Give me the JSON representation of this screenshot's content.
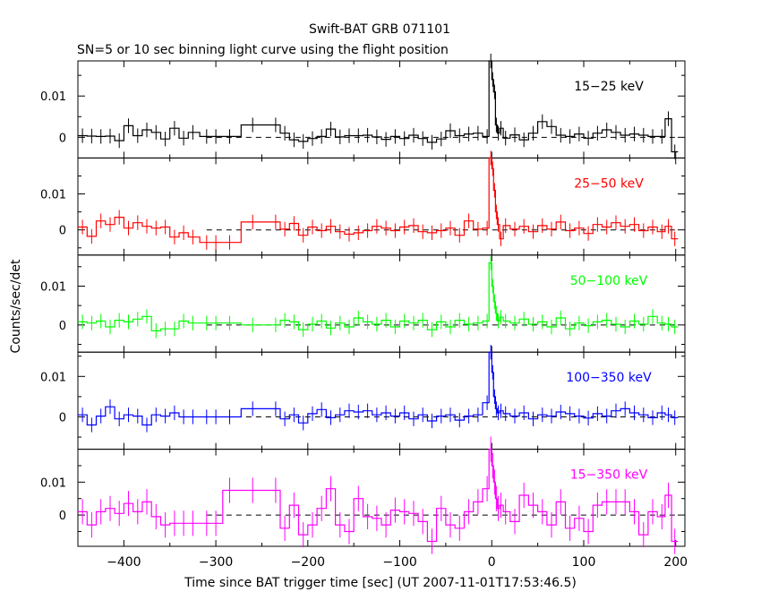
{
  "chart_data": {
    "type": "line",
    "title": "Swift-BAT GRB 071101",
    "subtitle": "SN=5 or 10 sec binning light curve using the flight position",
    "xlabel": "Time since BAT trigger time [sec] (UT 2007-11-01T17:53:46.5)",
    "ylabel": "Counts/sec/det",
    "xlim": [
      -450,
      210
    ],
    "x_ticks": [
      -400,
      -300,
      -200,
      -100,
      0,
      100,
      200
    ],
    "x_tick_labels": [
      "−400",
      "−300",
      "−200",
      "−100",
      "0",
      "100",
      "200"
    ],
    "y_ticks": [
      0,
      0.01
    ],
    "y_tick_labels": [
      "0",
      "0.01"
    ],
    "baseline": 0,
    "series": [
      {
        "name": "15−25 keV",
        "color": "#000000",
        "ylim": [
          -0.005,
          0.0185
        ],
        "x": [
          -445,
          -435,
          -425,
          -415,
          -405,
          -395,
          -385,
          -375,
          -365,
          -355,
          -345,
          -335,
          -325,
          -310,
          -300,
          -285,
          -260,
          -235,
          -225,
          -215,
          -205,
          -195,
          -185,
          -175,
          -165,
          -155,
          -145,
          -135,
          -125,
          -115,
          -105,
          -95,
          -85,
          -75,
          -65,
          -55,
          -45,
          -35,
          -25,
          -15,
          -5,
          -1,
          1,
          3,
          5,
          7,
          10,
          15,
          25,
          35,
          45,
          55,
          65,
          75,
          85,
          95,
          105,
          115,
          125,
          135,
          145,
          155,
          165,
          175,
          185,
          192,
          199
        ],
        "y": [
          0.0004,
          0.0003,
          0.0002,
          0.0003,
          -0.0008,
          0.0028,
          0.0004,
          0.0018,
          0.0012,
          -0.0004,
          0.0022,
          -0.0002,
          0.0012,
          0.0002,
          0.0002,
          0.0002,
          0.003,
          0.003,
          0.001,
          -0.0006,
          -0.001,
          -0.0003,
          0.0002,
          0.002,
          0.0001,
          0.0004,
          0.0004,
          0.0005,
          0.0001,
          -0.0005,
          0.0002,
          -0.0003,
          0.0005,
          -0.0003,
          -0.0012,
          -0.0004,
          0.0016,
          0.0004,
          0.0008,
          0.001,
          0.0002,
          0.0185,
          0.014,
          0.011,
          0.003,
          0.001,
          0.0022,
          -0.0002,
          0.0006,
          -0.0006,
          0.001,
          0.0038,
          0.0026,
          0.0005,
          0.0002,
          0.0008,
          -0.0002,
          0.001,
          0.0018,
          0.0012,
          0.0005,
          0.0008,
          0.0005,
          0.0002,
          0.0002,
          0.0045,
          -0.0035
        ]
      },
      {
        "name": "25−50 keV",
        "color": "#ff0000",
        "ylim": [
          -0.007,
          0.02
        ],
        "x": [
          -445,
          -435,
          -425,
          -415,
          -405,
          -395,
          -385,
          -375,
          -365,
          -355,
          -345,
          -335,
          -325,
          -310,
          -300,
          -285,
          -260,
          -235,
          -225,
          -215,
          -205,
          -195,
          -185,
          -175,
          -165,
          -155,
          -145,
          -135,
          -125,
          -115,
          -105,
          -95,
          -85,
          -75,
          -65,
          -55,
          -45,
          -35,
          -25,
          -15,
          -5,
          -1,
          1,
          3,
          5,
          7,
          10,
          15,
          25,
          35,
          45,
          55,
          65,
          75,
          85,
          95,
          105,
          115,
          125,
          135,
          145,
          155,
          165,
          175,
          185,
          192,
          199
        ],
        "y": [
          0.0008,
          -0.0018,
          0.0025,
          0.0015,
          0.0035,
          0.0005,
          0.002,
          0.001,
          0.0005,
          0.0008,
          -0.002,
          -0.0008,
          -0.002,
          -0.0035,
          -0.0035,
          -0.0035,
          0.0022,
          0.0022,
          0.0002,
          0.0018,
          -0.0015,
          0.0008,
          -0.0002,
          0.001,
          -0.0005,
          -0.0012,
          -0.0008,
          -0.0002,
          0.001,
          0.0005,
          -0.0002,
          0.0008,
          0.0012,
          -0.0005,
          -0.0008,
          -0.0002,
          0.0005,
          -0.0015,
          0.0025,
          0.0002,
          0.0005,
          0.02,
          0.017,
          0.011,
          0.005,
          0.0015,
          -0.0025,
          0.0012,
          0.0002,
          0.001,
          -0.0005,
          0.0012,
          0.0002,
          0.0022,
          -0.0002,
          0.0005,
          -0.001,
          0.0015,
          0.0008,
          0.002,
          0.001,
          0.0015,
          -0.0002,
          0.0008,
          -0.0005,
          0.001,
          -0.0025
        ]
      },
      {
        "name": "50−100 keV",
        "color": "#00ff00",
        "ylim": [
          -0.007,
          0.018
        ],
        "x": [
          -445,
          -435,
          -425,
          -415,
          -405,
          -395,
          -385,
          -375,
          -365,
          -355,
          -345,
          -335,
          -325,
          -310,
          -300,
          -285,
          -260,
          -235,
          -225,
          -215,
          -205,
          -195,
          -185,
          -175,
          -165,
          -155,
          -145,
          -135,
          -125,
          -115,
          -105,
          -95,
          -85,
          -75,
          -65,
          -55,
          -45,
          -35,
          -25,
          -15,
          -5,
          -1,
          1,
          3,
          5,
          7,
          10,
          15,
          25,
          35,
          45,
          55,
          65,
          75,
          85,
          95,
          105,
          115,
          125,
          135,
          145,
          155,
          165,
          175,
          185,
          192,
          199
        ],
        "y": [
          0.0008,
          0.0005,
          0.001,
          -0.0005,
          0.0012,
          0.0008,
          0.0015,
          0.0022,
          -0.0015,
          -0.001,
          -0.001,
          0.001,
          0.0005,
          0.0005,
          0.0005,
          0.0005,
          0.0,
          0.0,
          0.0012,
          0.0008,
          -0.0012,
          0.0002,
          0.001,
          -0.0008,
          0.0005,
          -0.0005,
          0.0018,
          0.0008,
          0.0002,
          0.0012,
          -0.0005,
          0.001,
          0.0005,
          0.0012,
          -0.0012,
          0.0008,
          -0.0005,
          0.0012,
          0.0002,
          0.0005,
          0.001,
          0.016,
          0.01,
          0.006,
          0.003,
          0.001,
          0.002,
          0.001,
          0.0005,
          0.0015,
          0.0002,
          0.0008,
          -0.0005,
          0.0018,
          -0.001,
          0.0005,
          -0.0002,
          0.0008,
          0.0012,
          0.0002,
          -0.0005,
          0.001,
          0.0002,
          0.0022,
          0.0005,
          0.0002,
          -0.0005
        ]
      },
      {
        "name": "100−350 keV",
        "color": "#0000ff",
        "ylim": [
          -0.008,
          0.016
        ],
        "x": [
          -445,
          -435,
          -425,
          -415,
          -405,
          -395,
          -385,
          -375,
          -365,
          -355,
          -345,
          -335,
          -325,
          -310,
          -300,
          -285,
          -260,
          -235,
          -225,
          -215,
          -205,
          -195,
          -185,
          -175,
          -165,
          -155,
          -145,
          -135,
          -125,
          -115,
          -105,
          -95,
          -85,
          -75,
          -65,
          -55,
          -45,
          -35,
          -25,
          -15,
          -5,
          -1,
          1,
          3,
          5,
          7,
          10,
          15,
          25,
          35,
          45,
          55,
          65,
          75,
          85,
          95,
          105,
          115,
          125,
          135,
          145,
          155,
          165,
          175,
          185,
          192,
          199
        ],
        "y": [
          0.0005,
          -0.002,
          0.0002,
          0.0025,
          -0.0005,
          0.0005,
          0.0002,
          -0.002,
          0.0005,
          0.0002,
          0.001,
          0.0,
          0.0,
          0.0,
          0.0,
          0.0,
          0.002,
          0.002,
          -0.0005,
          0.0005,
          -0.0015,
          0.0008,
          0.0018,
          -0.0002,
          0.0005,
          0.0015,
          0.0012,
          0.0015,
          0.0005,
          0.001,
          0.0002,
          0.001,
          -0.0005,
          0.0005,
          -0.001,
          0.0002,
          0.0005,
          -0.0008,
          0.0002,
          0.0005,
          0.0035,
          0.016,
          0.011,
          0.005,
          0.002,
          0.001,
          0.0015,
          0.0008,
          0.0002,
          0.001,
          -0.0005,
          0.0005,
          0.0002,
          0.0012,
          0.0008,
          0.0002,
          -0.0003,
          0.0008,
          0.0002,
          0.0015,
          0.002,
          0.001,
          0.0005,
          -0.0002,
          0.001,
          0.0005,
          -0.0002
        ]
      },
      {
        "name": "15−350 keV",
        "color": "#ff00ff",
        "ylim": [
          -0.0095,
          0.02
        ],
        "x": [
          -445,
          -435,
          -425,
          -415,
          -405,
          -395,
          -385,
          -375,
          -365,
          -355,
          -345,
          -335,
          -325,
          -310,
          -300,
          -285,
          -260,
          -235,
          -225,
          -215,
          -205,
          -195,
          -185,
          -175,
          -165,
          -155,
          -145,
          -135,
          -125,
          -115,
          -105,
          -95,
          -85,
          -75,
          -65,
          -55,
          -45,
          -35,
          -25,
          -15,
          -5,
          -1,
          1,
          3,
          5,
          7,
          10,
          15,
          25,
          35,
          45,
          55,
          65,
          75,
          85,
          95,
          105,
          115,
          125,
          135,
          145,
          155,
          165,
          175,
          185,
          192,
          199
        ],
        "y": [
          0.001,
          -0.003,
          0.001,
          0.002,
          0.0005,
          0.0035,
          0.001,
          0.004,
          -0.0005,
          -0.003,
          -0.0025,
          -0.0025,
          -0.0025,
          -0.0025,
          -0.0025,
          0.0075,
          0.0075,
          0.0075,
          -0.004,
          0.003,
          -0.006,
          -0.003,
          0.002,
          0.008,
          -0.003,
          -0.005,
          0.005,
          -0.0005,
          -0.001,
          -0.003,
          0.0015,
          0.001,
          0.0005,
          -0.002,
          -0.008,
          0.002,
          -0.003,
          -0.004,
          0.001,
          0.004,
          0.008,
          0.02,
          0.015,
          0.01,
          0.005,
          0.002,
          0.003,
          0.001,
          -0.002,
          0.006,
          0.003,
          0.001,
          -0.003,
          0.004,
          -0.004,
          -0.001,
          -0.005,
          0.003,
          0.004,
          0.004,
          0.004,
          0.001,
          -0.006,
          0.001,
          -0.0005,
          0.006,
          -0.008
        ]
      }
    ]
  }
}
